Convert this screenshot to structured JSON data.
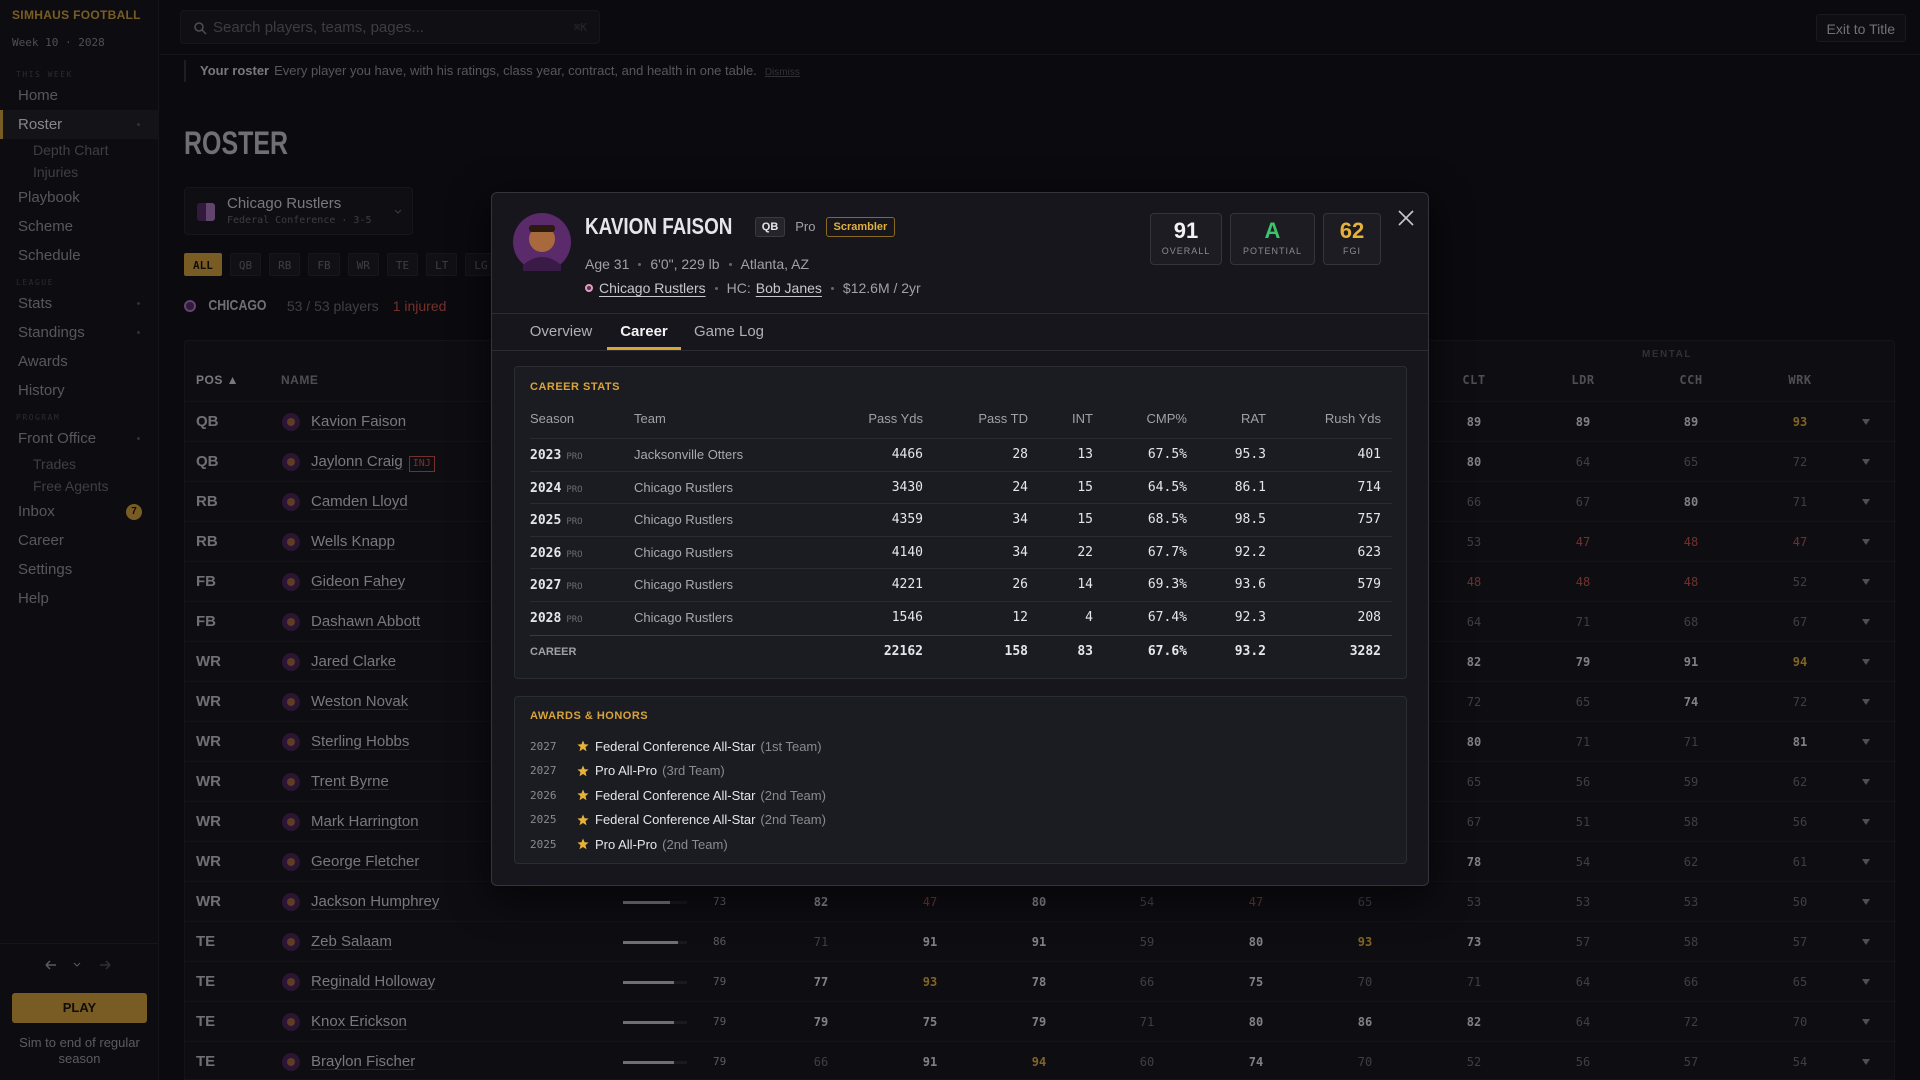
{
  "sidebar": {
    "brand": "SIMHAUS FOOTBALL",
    "week": "Week 10 · 2028",
    "sections": [
      {
        "label": "THIS WEEK",
        "items": [
          {
            "label": "Home"
          },
          {
            "label": "Roster",
            "active": true,
            "expandable": true,
            "children": [
              "Depth Chart",
              "Injuries"
            ]
          },
          {
            "label": "Playbook"
          },
          {
            "label": "Scheme"
          },
          {
            "label": "Schedule"
          }
        ]
      },
      {
        "label": "LEAGUE",
        "items": [
          {
            "label": "Stats",
            "expandable": true
          },
          {
            "label": "Standings",
            "expandable": true
          },
          {
            "label": "Awards"
          },
          {
            "label": "History"
          }
        ]
      },
      {
        "label": "PROGRAM",
        "items": [
          {
            "label": "Front Office",
            "expandable": true,
            "children": [
              "Trades",
              "Free Agents"
            ]
          },
          {
            "label": "Inbox",
            "badge": 7
          },
          {
            "label": "Career"
          },
          {
            "label": "Settings"
          },
          {
            "label": "Help"
          }
        ]
      }
    ],
    "play": "PLAY",
    "sim": "Sim to end of regular season"
  },
  "topbar": {
    "search": "Search players, teams, pages...",
    "shortcut": "⌘K",
    "exit": "Exit to Title"
  },
  "banner": {
    "title": "Your roster",
    "text": "Every player you have, with his ratings, class year, contract, and health in one table.",
    "dismiss": "Dismiss"
  },
  "roster": {
    "title": "ROSTER",
    "team": "Chicago Rustlers",
    "conference": "Federal Conference · 3-5",
    "filters": [
      "ALL",
      "QB",
      "RB",
      "FB",
      "WR",
      "TE",
      "LT",
      "LG"
    ],
    "active_filter": 0,
    "team_code": "CHICAGO",
    "count": "53 / 53 players",
    "injured": "1 injured",
    "group": "MENTAL",
    "columns": {
      "pos": "POS ▲",
      "name": "NAME",
      "mental": [
        "CLT",
        "LDR",
        "CCH",
        "WRK"
      ]
    },
    "rows": [
      {
        "pos": "QB",
        "name": "Kavion Faison",
        "mental": [
          89,
          89,
          89,
          93
        ]
      },
      {
        "pos": "QB",
        "name": "Jaylonn Craig",
        "tag": "INJ",
        "mental": [
          80,
          64,
          65,
          72
        ]
      },
      {
        "pos": "RB",
        "name": "Camden Lloyd",
        "mental": [
          66,
          67,
          80,
          71
        ]
      },
      {
        "pos": "RB",
        "name": "Wells Knapp",
        "mental": [
          53,
          47,
          48,
          47
        ]
      },
      {
        "pos": "FB",
        "name": "Gideon Fahey",
        "mental": [
          48,
          48,
          48,
          52
        ]
      },
      {
        "pos": "FB",
        "name": "Dashawn Abbott",
        "mental": [
          64,
          71,
          68,
          67
        ]
      },
      {
        "pos": "WR",
        "name": "Jared Clarke",
        "mental": [
          82,
          79,
          91,
          94
        ]
      },
      {
        "pos": "WR",
        "name": "Weston Novak",
        "mental": [
          72,
          65,
          74,
          72
        ]
      },
      {
        "pos": "WR",
        "name": "Sterling Hobbs",
        "mental": [
          80,
          71,
          71,
          81
        ]
      },
      {
        "pos": "WR",
        "name": "Trent Byrne",
        "mental": [
          65,
          56,
          59,
          62
        ]
      },
      {
        "pos": "WR",
        "name": "Mark Harrington",
        "mental": [
          67,
          51,
          58,
          56
        ]
      },
      {
        "pos": "WR",
        "name": "George Fletcher",
        "mental": [
          78,
          54,
          62,
          61
        ]
      },
      {
        "pos": "WR",
        "name": "Jackson Humphrey",
        "ovr": 73,
        "ratings": [
          82,
          47,
          80,
          54,
          47,
          65
        ],
        "mental": [
          53,
          53,
          53,
          50
        ]
      },
      {
        "pos": "TE",
        "name": "Zeb Salaam",
        "ovr": 86,
        "ratings": [
          71,
          91,
          91,
          59,
          80,
          93
        ],
        "mental": [
          73,
          57,
          58,
          57
        ]
      },
      {
        "pos": "TE",
        "name": "Reginald Holloway",
        "ovr": 79,
        "ratings": [
          77,
          93,
          78,
          66,
          75,
          70
        ],
        "mental": [
          71,
          64,
          66,
          65
        ]
      },
      {
        "pos": "TE",
        "name": "Knox Erickson",
        "ovr": 79,
        "ratings": [
          79,
          75,
          79,
          71,
          80,
          86
        ],
        "mental": [
          82,
          64,
          72,
          70
        ]
      },
      {
        "pos": "TE",
        "name": "Braylon Fischer",
        "ovr": 79,
        "ratings": [
          66,
          91,
          94,
          60,
          74,
          70
        ],
        "mental": [
          52,
          56,
          57,
          54
        ]
      }
    ]
  },
  "modal": {
    "name": "KAVION FAISON",
    "position": "QB",
    "level": "Pro",
    "trait": "Scrambler",
    "bio": [
      "Age 31",
      "6'0\", 229 lb",
      "Atlanta, AZ"
    ],
    "team": "Chicago Rustlers",
    "coach_label": "HC:",
    "coach": "Bob Janes",
    "contract": "$12.6M / 2yr",
    "ratings": [
      {
        "value": 91,
        "label": "OVERALL"
      },
      {
        "value": "A",
        "label": "POTENTIAL"
      },
      {
        "value": 62,
        "label": "FGI"
      }
    ],
    "tabs": [
      "Overview",
      "Career",
      "Game Log"
    ],
    "active_tab": 1,
    "career": {
      "title": "CAREER STATS",
      "columns": [
        "Season",
        "Team",
        "Pass Yds",
        "Pass TD",
        "INT",
        "CMP%",
        "RAT",
        "Rush Yds"
      ],
      "rows": [
        {
          "season": 2023,
          "level": "PRO",
          "team": "Jacksonville Otters",
          "stats": [
            4466,
            28,
            13,
            "67.5%",
            95.3,
            401
          ]
        },
        {
          "season": 2024,
          "level": "PRO",
          "team": "Chicago Rustlers",
          "stats": [
            3430,
            24,
            15,
            "64.5%",
            86.1,
            714
          ]
        },
        {
          "season": 2025,
          "level": "PRO",
          "team": "Chicago Rustlers",
          "stats": [
            4359,
            34,
            15,
            "68.5%",
            98.5,
            757
          ]
        },
        {
          "season": 2026,
          "level": "PRO",
          "team": "Chicago Rustlers",
          "stats": [
            4140,
            34,
            22,
            "67.7%",
            92.2,
            623
          ]
        },
        {
          "season": 2027,
          "level": "PRO",
          "team": "Chicago Rustlers",
          "stats": [
            4221,
            26,
            14,
            "69.3%",
            93.6,
            579
          ]
        },
        {
          "season": 2028,
          "level": "PRO",
          "team": "Chicago Rustlers",
          "stats": [
            1546,
            12,
            4,
            "67.4%",
            92.3,
            208
          ]
        }
      ],
      "total": {
        "label": "CAREER",
        "stats": [
          22162,
          158,
          83,
          "67.6%",
          93.2,
          3282
        ]
      }
    },
    "awards": {
      "title": "AWARDS & HONORS",
      "items": [
        {
          "year": 2027,
          "title": "Federal Conference All-Star",
          "detail": "(1st Team)"
        },
        {
          "year": 2027,
          "title": "Pro All-Pro",
          "detail": "(3rd Team)"
        },
        {
          "year": 2026,
          "title": "Federal Conference All-Star",
          "detail": "(2nd Team)"
        },
        {
          "year": 2025,
          "title": "Federal Conference All-Star",
          "detail": "(2nd Team)"
        },
        {
          "year": 2025,
          "title": "Pro All-Pro",
          "detail": "(2nd Team)"
        }
      ]
    }
  }
}
